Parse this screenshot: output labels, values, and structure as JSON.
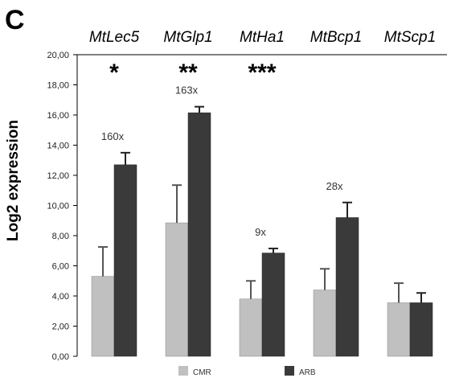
{
  "figure": {
    "panel_letter": "C"
  },
  "chart_data": {
    "type": "bar",
    "categories": [
      "MtLec5",
      "MtGlp1",
      "MtHa1",
      "MtBcp1",
      "MtScp1"
    ],
    "series": [
      {
        "name": "CMR",
        "values": [
          5.3,
          8.85,
          3.8,
          4.4,
          3.55
        ],
        "errors": [
          1.95,
          2.5,
          1.2,
          1.4,
          1.3
        ],
        "color": "#c0c0c0"
      },
      {
        "name": "ARB",
        "values": [
          12.7,
          16.15,
          6.85,
          9.2,
          3.55
        ],
        "errors": [
          0.8,
          0.4,
          0.3,
          1.0,
          0.65
        ],
        "color": "#3a3a3a"
      }
    ],
    "fold_labels": [
      "160x",
      "163x",
      "9x",
      "28x",
      ""
    ],
    "significance": [
      "*",
      "**",
      "***",
      "",
      ""
    ],
    "ylabel": "Log2 expression",
    "xlabel": "",
    "ylim": [
      0,
      20
    ],
    "yticks": [
      "0,00",
      "2,00",
      "4,00",
      "6,00",
      "8,00",
      "10,00",
      "12,00",
      "14,00",
      "16,00",
      "18,00",
      "20,00"
    ],
    "legend_position": "bottom",
    "grid": false
  }
}
